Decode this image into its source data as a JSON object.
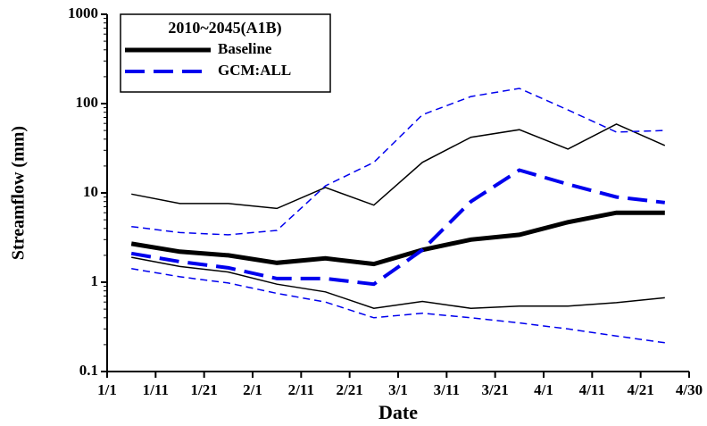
{
  "chart_data": {
    "type": "line",
    "legend_title": "2010~2045(A1B)",
    "x_label": "Date",
    "y_label": "Streamflow (mm)",
    "x": [
      0.5,
      1.5,
      2.5,
      3.5,
      4.5,
      5.5,
      6.5,
      7.5,
      8.5,
      9.5,
      10.5,
      11.5
    ],
    "xlim": [
      0,
      12
    ],
    "xticks": [
      {
        "value": 0,
        "label": "1/1"
      },
      {
        "value": 1,
        "label": "1/11"
      },
      {
        "value": 2,
        "label": "1/21"
      },
      {
        "value": 3,
        "label": "2/1"
      },
      {
        "value": 4,
        "label": "2/11"
      },
      {
        "value": 5,
        "label": "2/21"
      },
      {
        "value": 6,
        "label": "3/1"
      },
      {
        "value": 7,
        "label": "3/11"
      },
      {
        "value": 8,
        "label": "3/21"
      },
      {
        "value": 9,
        "label": "4/1"
      },
      {
        "value": 10,
        "label": "4/11"
      },
      {
        "value": 11,
        "label": "4/21"
      },
      {
        "value": 12,
        "label": "4/30"
      }
    ],
    "ylim": [
      0.1,
      1000
    ],
    "yticks": [
      0.1,
      1,
      10,
      100,
      1000
    ],
    "log_y": true,
    "legend": "top-left",
    "series": [
      {
        "name": "Baseline",
        "color": "#000000",
        "width": 5,
        "dashed": false,
        "values": [
          2.7,
          2.2,
          2.0,
          1.65,
          1.85,
          1.6,
          2.3,
          3.0,
          3.4,
          4.7,
          6.0,
          6.0
        ]
      },
      {
        "name": "GCM:ALL",
        "color": "#0000ee",
        "width": 4,
        "dashed": true,
        "values": [
          2.1,
          1.7,
          1.45,
          1.1,
          1.1,
          0.95,
          2.3,
          8.0,
          18,
          12.5,
          9.0,
          7.8
        ]
      },
      {
        "color": "#000000",
        "width": 1.5,
        "dashed": false,
        "values": [
          9.7,
          7.6,
          7.6,
          6.7,
          11.5,
          7.3,
          22,
          42,
          51,
          31,
          59,
          34
        ]
      },
      {
        "color": "#000000",
        "width": 1.5,
        "dashed": false,
        "values": [
          1.9,
          1.5,
          1.3,
          0.95,
          0.78,
          0.51,
          0.61,
          0.51,
          0.54,
          0.54,
          0.59,
          0.67
        ]
      },
      {
        "color": "#0000ee",
        "width": 1.5,
        "dashed": true,
        "values": [
          4.2,
          3.6,
          3.4,
          3.8,
          12,
          22,
          75,
          120,
          148,
          85,
          48,
          50
        ]
      },
      {
        "color": "#0000ee",
        "width": 1.5,
        "dashed": true,
        "values": [
          1.42,
          1.15,
          0.98,
          0.75,
          0.6,
          0.4,
          0.45,
          0.4,
          0.35,
          0.3,
          0.25,
          0.21
        ]
      }
    ]
  }
}
